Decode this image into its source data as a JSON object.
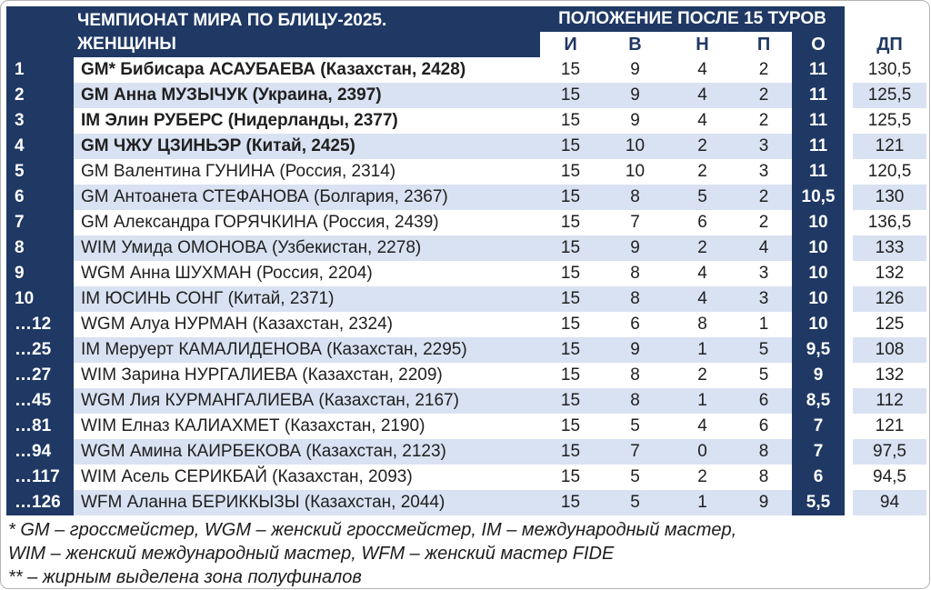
{
  "title": {
    "line1": "ЧЕМПИОНАТ МИРА ПО БЛИЦУ-2025.",
    "line2": "ЖЕНЩИНЫ"
  },
  "header_band": "ПОЛОЖЕНИЕ ПОСЛЕ 15 ТУРОВ",
  "columns": {
    "games": "И",
    "wins": "В",
    "draws": "Н",
    "losses": "П",
    "points": "О",
    "tiebreak": "ДП"
  },
  "players": [
    {
      "rank": "1",
      "name": "GM* Бибисара АСАУБАЕВА (Казахстан, 2428)",
      "bold": true,
      "games": "15",
      "wins": "9",
      "draws": "4",
      "losses": "2",
      "points": "11",
      "tiebreak": "130,5"
    },
    {
      "rank": "2",
      "name": "GM Анна МУЗЫЧУК (Украина, 2397)",
      "bold": true,
      "games": "15",
      "wins": "9",
      "draws": "4",
      "losses": "2",
      "points": "11",
      "tiebreak": "125,5"
    },
    {
      "rank": "3",
      "name": "IM Элин РУБЕРС (Нидерланды, 2377)",
      "bold": true,
      "games": "15",
      "wins": "9",
      "draws": "4",
      "losses": "2",
      "points": "11",
      "tiebreak": "125,5"
    },
    {
      "rank": "4",
      "name": "GM ЧЖУ ЦЗИНЬЭР (Китай, 2425)",
      "bold": true,
      "games": "15",
      "wins": "10",
      "draws": "2",
      "losses": "3",
      "points": "11",
      "tiebreak": "121"
    },
    {
      "rank": "5",
      "name": "GM Валентина ГУНИНА (Россия, 2314)",
      "bold": false,
      "games": "15",
      "wins": "10",
      "draws": "2",
      "losses": "3",
      "points": "11",
      "tiebreak": "120,5"
    },
    {
      "rank": "6",
      "name": "GM Антоанета СТЕФАНОВА (Болгария, 2367)",
      "bold": false,
      "games": "15",
      "wins": "8",
      "draws": "5",
      "losses": "2",
      "points": "10,5",
      "tiebreak": "130"
    },
    {
      "rank": "7",
      "name": "GM Александра ГОРЯЧКИНА (Россия, 2439)",
      "bold": false,
      "games": "15",
      "wins": "7",
      "draws": "6",
      "losses": "2",
      "points": "10",
      "tiebreak": "136,5"
    },
    {
      "rank": "8",
      "name": "WIM Умида ОМОНОВА (Узбекистан, 2278)",
      "bold": false,
      "games": "15",
      "wins": "9",
      "draws": "2",
      "losses": "4",
      "points": "10",
      "tiebreak": "133"
    },
    {
      "rank": "9",
      "name": "WGM Анна ШУХМАН (Россия, 2204)",
      "bold": false,
      "games": "15",
      "wins": "8",
      "draws": "4",
      "losses": "3",
      "points": "10",
      "tiebreak": "132"
    },
    {
      "rank": "10",
      "name": "IM ЮСИНЬ СОНГ (Китай, 2371)",
      "bold": false,
      "games": "15",
      "wins": "8",
      "draws": "4",
      "losses": "3",
      "points": "10",
      "tiebreak": "126"
    },
    {
      "rank": "…12",
      "name": "WGM Алуа НУРМАН (Казахстан, 2324)",
      "bold": false,
      "games": "15",
      "wins": "6",
      "draws": "8",
      "losses": "1",
      "points": "10",
      "tiebreak": "125"
    },
    {
      "rank": "…25",
      "name": "IM Меруерт КАМАЛИДЕНОВА (Казахстан, 2295)",
      "bold": false,
      "games": "15",
      "wins": "9",
      "draws": "1",
      "losses": "5",
      "points": "9,5",
      "tiebreak": "108"
    },
    {
      "rank": "…27",
      "name": "WIM Зарина НУРГАЛИЕВА (Казахстан, 2209)",
      "bold": false,
      "games": "15",
      "wins": "8",
      "draws": "2",
      "losses": "5",
      "points": "9",
      "tiebreak": "132"
    },
    {
      "rank": "…45",
      "name": "WGM Лия КУРМАНГАЛИЕВА (Казахстан, 2167)",
      "bold": false,
      "games": "15",
      "wins": "8",
      "draws": "1",
      "losses": "6",
      "points": "8,5",
      "tiebreak": "112"
    },
    {
      "rank": "…81",
      "name": "WIM Елназ КАЛИАХМЕТ (Казахстан, 2190)",
      "bold": false,
      "games": "15",
      "wins": "5",
      "draws": "4",
      "losses": "6",
      "points": "7",
      "tiebreak": "121"
    },
    {
      "rank": "…94",
      "name": "WGM Амина КАИРБЕКОВА (Казахстан, 2123)",
      "bold": false,
      "games": "15",
      "wins": "7",
      "draws": "0",
      "losses": "8",
      "points": "7",
      "tiebreak": "97,5"
    },
    {
      "rank": "…117",
      "name": "WIM Асель СЕРИКБАЙ (Казахстан, 2093)",
      "bold": false,
      "games": "15",
      "wins": "5",
      "draws": "2",
      "losses": "8",
      "points": "6",
      "tiebreak": "94,5"
    },
    {
      "rank": "…126",
      "name": "WFM Аланна БЕРИККЫЗЫ (Казахстан, 2044)",
      "bold": false,
      "games": "15",
      "wins": "5",
      "draws": "1",
      "losses": "9",
      "points": "5,5",
      "tiebreak": "94"
    }
  ],
  "footnotes": [
    "* GM – гроссмейстер, WGM – женский гроссмейстер, IM – международный мастер,",
    "WIM – женский международный мастер, WFM – женский мастер FIDE",
    "** – жирным выделена зона полуфиналов"
  ],
  "colors": {
    "navy": "#1F3864",
    "stripe_blue": "#D9E2F2",
    "row_white": "#FFFFFF",
    "header_text": "#1F3864",
    "body_text": "#202020"
  }
}
